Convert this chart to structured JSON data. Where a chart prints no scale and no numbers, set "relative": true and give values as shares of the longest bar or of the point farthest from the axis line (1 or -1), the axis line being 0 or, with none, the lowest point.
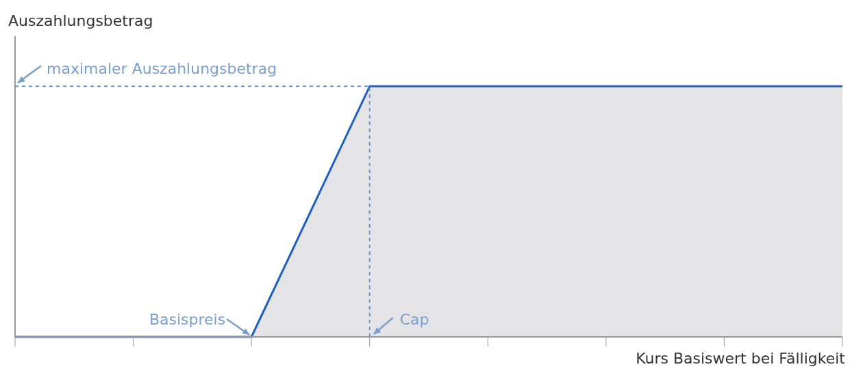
{
  "chart_data": {
    "type": "area",
    "relative": true,
    "xlabel": "Kurs Basiswert bei Fälligkeit",
    "ylabel": "Auszahlungsbetrag",
    "categories": [
      null,
      null,
      null,
      null,
      null,
      null,
      null,
      null
    ],
    "series": [
      {
        "color": "#1f5fbf",
        "values": [
          0,
          0,
          0,
          1,
          1,
          1,
          1,
          1
        ]
      }
    ],
    "ref_lines": [
      {
        "axis": "y",
        "value": 1,
        "label": "maximaler Auszahlungsbetrag",
        "color": "#6a93c8",
        "line_style": "dashed"
      },
      {
        "axis": "x",
        "label": "Cap",
        "color": "#6a93c8",
        "line_style": "dashed"
      }
    ],
    "annotations": [
      "Basispreis"
    ]
  }
}
